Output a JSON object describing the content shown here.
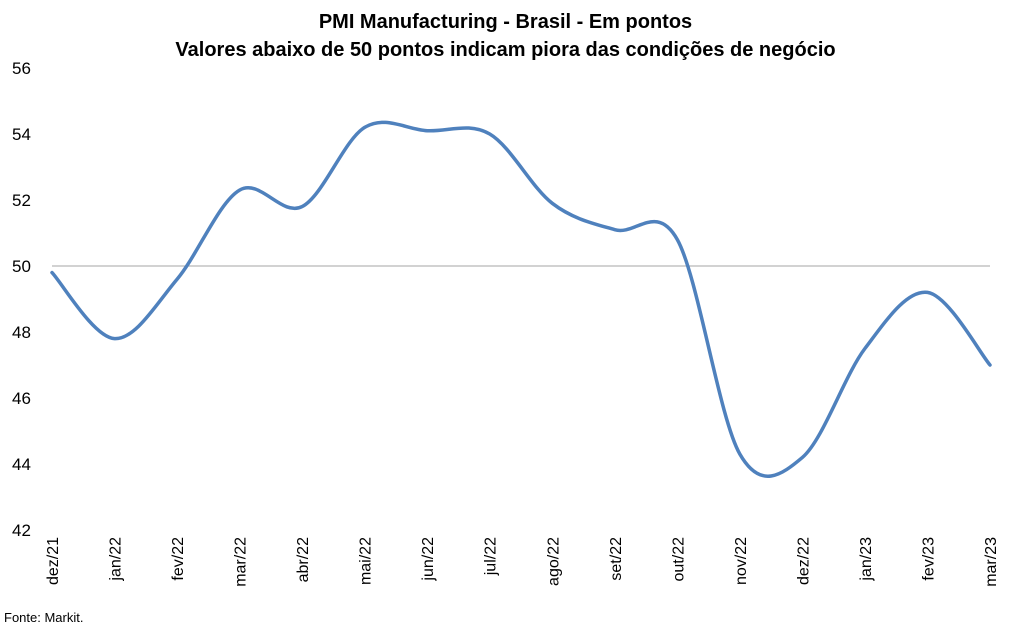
{
  "chart_data": {
    "type": "line",
    "title": "PMI Manufacturing - Brasil - Em pontos",
    "subtitle": "Valores abaixo de 50 pontos indicam piora das condições de negócio",
    "categories": [
      "dez/21",
      "jan/22",
      "fev/22",
      "mar/22",
      "abr/22",
      "mai/22",
      "jun/22",
      "jul/22",
      "ago/22",
      "set/22",
      "out/22",
      "nov/22",
      "dez/22",
      "jan/23",
      "fev/23",
      "mar/23"
    ],
    "series": [
      {
        "values": [
          49.8,
          47.8,
          49.6,
          52.3,
          51.8,
          54.2,
          54.1,
          54.0,
          51.9,
          51.1,
          50.8,
          44.3,
          44.2,
          47.5,
          49.2,
          47.0
        ]
      }
    ],
    "reference_line": 50,
    "ylim": [
      42,
      56
    ],
    "yticks": [
      42,
      44,
      46,
      48,
      50,
      52,
      54,
      56
    ],
    "grid": false,
    "legend": "none",
    "line_color": "#4f81bd",
    "reference_color": "#a6a6a6"
  },
  "source": "Fonte: Markit."
}
